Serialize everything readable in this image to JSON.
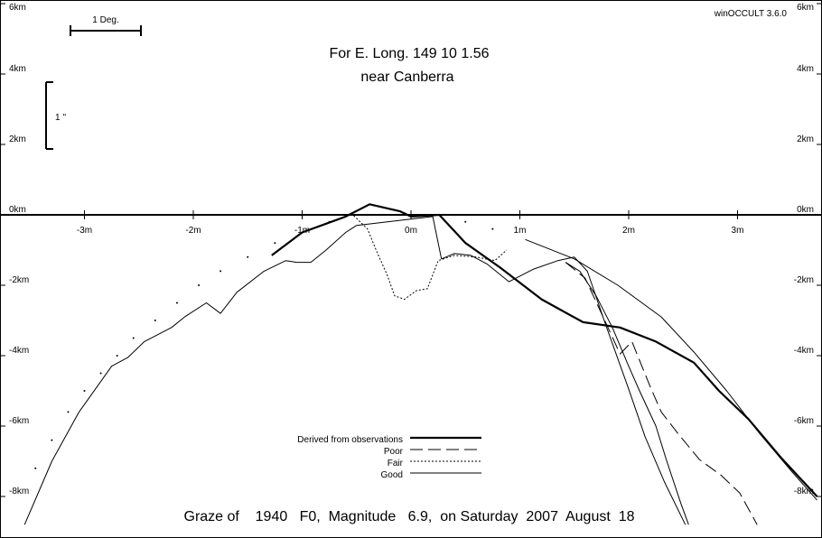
{
  "header": {
    "version": "winOCCULT 3.6.0",
    "title_line1": "For E. Long.  149 10  1.56",
    "title_line2": "near Canberra"
  },
  "scales": {
    "deg_label": "1 Deg.",
    "arcsec_label": "1 ''"
  },
  "footer": {
    "caption": "Graze of    1940   F0,  Magnitude   6.9,  on Saturday  2007  August  18"
  },
  "legend": {
    "items": [
      {
        "key": "derived",
        "label": "Derived from observations"
      },
      {
        "key": "poor",
        "label": "Poor"
      },
      {
        "key": "fair",
        "label": "Fair"
      },
      {
        "key": "good",
        "label": "Good"
      }
    ]
  },
  "chart_data": {
    "type": "line",
    "title": "For E. Long.  149 10  1.56 near Canberra",
    "xlabel": "",
    "ylabel": "",
    "x_unit": "minutes",
    "y_unit": "km",
    "xlim": [
      -3.75,
      3.75
    ],
    "ylim": [
      -8.8,
      6.0
    ],
    "x_ticks": [
      -3,
      -2,
      -1,
      0,
      1,
      2,
      3
    ],
    "x_tick_labels": [
      "-3m",
      "-2m",
      "-1m",
      "0m",
      "1m",
      "2m",
      "3m"
    ],
    "y_ticks": [
      6,
      4,
      2,
      0,
      -2,
      -4,
      -6,
      -8
    ],
    "y_tick_labels": [
      "6km",
      "4km",
      "2km",
      "0km",
      "-2km",
      "-4km",
      "-6km",
      "-8km"
    ],
    "series": [
      {
        "name": "Derived from observations",
        "style": "thick",
        "points": [
          [
            -1.28,
            -1.15
          ],
          [
            -1.0,
            -0.5
          ],
          [
            -0.6,
            -0.05
          ],
          [
            -0.38,
            0.3
          ],
          [
            -0.1,
            0.1
          ],
          [
            0.0,
            -0.05
          ],
          [
            0.26,
            0.0
          ],
          [
            0.5,
            -0.8
          ],
          [
            0.82,
            -1.5
          ],
          [
            1.2,
            -2.4
          ],
          [
            1.58,
            -3.05
          ],
          [
            1.92,
            -3.2
          ],
          [
            2.25,
            -3.6
          ],
          [
            2.6,
            -4.2
          ],
          [
            2.83,
            -5.0
          ],
          [
            3.1,
            -5.8
          ],
          [
            3.4,
            -6.9
          ],
          [
            3.73,
            -8.0
          ]
        ]
      },
      {
        "name": "Poor",
        "style": "dash",
        "points": [
          [
            1.42,
            -1.35
          ],
          [
            1.6,
            -1.8
          ],
          [
            1.78,
            -3.0
          ],
          [
            1.92,
            -3.95
          ],
          [
            2.03,
            -3.6
          ],
          [
            2.2,
            -4.9
          ],
          [
            2.3,
            -5.6
          ],
          [
            2.45,
            -6.2
          ],
          [
            2.65,
            -6.95
          ],
          [
            2.85,
            -7.4
          ],
          [
            3.02,
            -7.9
          ],
          [
            3.18,
            -8.8
          ]
        ]
      },
      {
        "name": "Fair",
        "style": "dot",
        "points": [
          [
            -0.55,
            0.05
          ],
          [
            -0.4,
            -0.4
          ],
          [
            -0.32,
            -1.0
          ],
          [
            -0.22,
            -1.7
          ],
          [
            -0.15,
            -2.3
          ],
          [
            -0.06,
            -2.4
          ],
          [
            0.05,
            -2.15
          ],
          [
            0.15,
            -2.1
          ],
          [
            0.25,
            -1.3
          ],
          [
            0.4,
            -1.15
          ],
          [
            0.6,
            -1.2
          ],
          [
            0.77,
            -1.3
          ],
          [
            0.88,
            -1.0
          ]
        ]
      },
      {
        "name": "Good",
        "style": "thin",
        "points": [
          [
            -3.55,
            -8.8
          ],
          [
            -3.3,
            -7.0
          ],
          [
            -3.05,
            -5.6
          ],
          [
            -2.75,
            -4.3
          ],
          [
            -2.6,
            -4.05
          ],
          [
            -2.45,
            -3.6
          ],
          [
            -2.2,
            -3.2
          ],
          [
            -2.08,
            -2.9
          ],
          [
            -1.88,
            -2.5
          ],
          [
            -1.75,
            -2.8
          ],
          [
            -1.6,
            -2.2
          ],
          [
            -1.35,
            -1.6
          ],
          [
            -1.15,
            -1.3
          ],
          [
            -1.05,
            -1.35
          ],
          [
            -0.92,
            -1.35
          ],
          [
            -0.78,
            -1.0
          ],
          [
            -0.6,
            -0.5
          ],
          [
            -0.5,
            -0.3
          ],
          [
            0.2,
            -0.05
          ],
          [
            0.28,
            -1.25
          ],
          [
            0.4,
            -1.1
          ],
          [
            0.55,
            -1.15
          ],
          [
            0.7,
            -1.4
          ],
          [
            0.9,
            -1.9
          ],
          [
            1.12,
            -1.55
          ],
          [
            1.35,
            -1.3
          ],
          [
            1.5,
            -1.2
          ],
          [
            1.62,
            -1.6
          ],
          [
            1.78,
            -3.05
          ],
          [
            2.0,
            -4.95
          ],
          [
            2.15,
            -6.3
          ],
          [
            2.33,
            -7.6
          ],
          [
            2.52,
            -8.8
          ]
        ]
      },
      {
        "name": "Good",
        "style": "thin",
        "points": [
          [
            1.42,
            -1.35
          ],
          [
            1.55,
            -1.6
          ],
          [
            1.7,
            -2.3
          ],
          [
            1.85,
            -3.2
          ],
          [
            2.0,
            -4.3
          ],
          [
            2.1,
            -5.0
          ],
          [
            2.25,
            -6.0
          ],
          [
            2.35,
            -7.0
          ],
          [
            2.48,
            -8.2
          ],
          [
            2.55,
            -8.8
          ]
        ]
      },
      {
        "name": "Good",
        "style": "thin",
        "points": [
          [
            1.05,
            -0.7
          ],
          [
            1.5,
            -1.25
          ],
          [
            1.9,
            -2.0
          ],
          [
            2.3,
            -2.9
          ],
          [
            2.6,
            -3.9
          ],
          [
            2.9,
            -5.0
          ],
          [
            3.2,
            -6.2
          ],
          [
            3.5,
            -7.3
          ],
          [
            3.73,
            -8.1
          ]
        ]
      },
      {
        "name": "",
        "style": "sparse-dot",
        "points": [
          [
            -3.45,
            -7.2
          ],
          [
            -3.3,
            -6.4
          ],
          [
            -3.15,
            -5.6
          ],
          [
            -3.0,
            -5.0
          ],
          [
            -2.85,
            -4.5
          ],
          [
            -2.7,
            -4.0
          ],
          [
            -2.55,
            -3.5
          ],
          [
            -2.35,
            -3.0
          ],
          [
            -2.15,
            -2.5
          ],
          [
            -1.95,
            -2.0
          ],
          [
            -1.75,
            -1.6
          ],
          [
            -1.5,
            -1.2
          ],
          [
            -1.25,
            -0.8
          ],
          [
            -1.0,
            -0.5
          ],
          [
            -0.75,
            -0.2
          ],
          [
            -0.5,
            0.0
          ],
          [
            -0.25,
            0.0
          ],
          [
            0.0,
            0.0
          ],
          [
            0.25,
            0.0
          ],
          [
            0.5,
            -0.2
          ],
          [
            0.75,
            -0.4
          ]
        ]
      }
    ]
  }
}
